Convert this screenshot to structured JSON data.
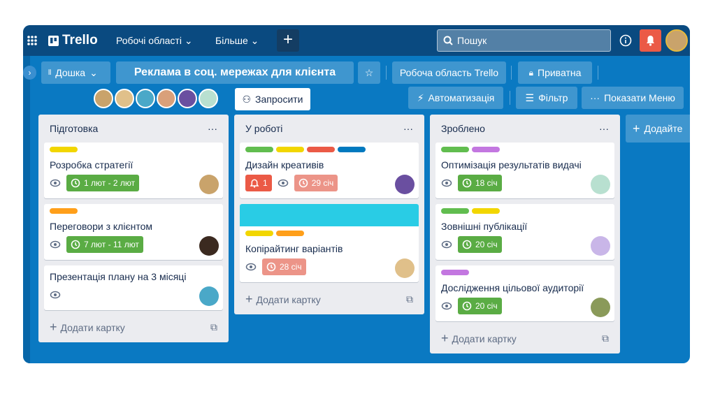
{
  "nav": {
    "logo": "Trello",
    "menus": [
      "Робочі області",
      "Більше"
    ],
    "search": "Пошук"
  },
  "board": {
    "view": "Дошка",
    "title": "Реклама в соц. мережах для клієнта",
    "workspace": "Робоча область Trello",
    "visibility": "Приватна",
    "invite": "Запросити",
    "automation": "Автоматизація",
    "filter": "Фільтр",
    "menu": "Показати Меню"
  },
  "lists": [
    {
      "title": "Підготовка",
      "add": "Додати картку",
      "cards": [
        {
          "labels": [
            "#f2d600"
          ],
          "title": "Розробка стратегії",
          "date": "1 лют - 2 лют",
          "date_color": "#5aac44",
          "avatar": "#c9a36b"
        },
        {
          "labels": [
            "#ff9f1a"
          ],
          "title": "Переговори з клієнтом",
          "date": "7 лют - 11 лют",
          "date_color": "#5aac44",
          "avatar": "#3b2a20"
        },
        {
          "labels": [],
          "title": "Презентація плану на 3 місяці",
          "avatar": "#4aa8c8"
        }
      ]
    },
    {
      "title": "У роботі",
      "add": "Додати картку",
      "cards": [
        {
          "labels": [
            "#61bd4f",
            "#f2d600",
            "#eb5a46",
            "#0079bf"
          ],
          "title": "Дизайн креативів",
          "notifications": "1",
          "date": "29 січ",
          "date_color": "#ec9488",
          "avatar": "#6a4fa0"
        },
        {
          "cover": "#29cce5",
          "labels": [
            "#f2d600",
            "#ff9f1a"
          ],
          "title": "Копірайтинг варіантів",
          "date": "28 січ",
          "date_color": "#ec9488",
          "avatar": "#e0c08a"
        }
      ]
    },
    {
      "title": "Зроблено",
      "add": "Додати картку",
      "cards": [
        {
          "labels": [
            "#61bd4f",
            "#c377e0"
          ],
          "title": "Оптимізація результатів видачі",
          "date": "18 січ",
          "date_color": "#5aac44",
          "avatar": "#b8e0d0"
        },
        {
          "labels": [
            "#61bd4f",
            "#f2d600"
          ],
          "title": "Зовнішні публікації",
          "date": "20 січ",
          "date_color": "#5aac44",
          "avatar": "#c9b6e8"
        },
        {
          "labels": [
            "#c377e0"
          ],
          "title": "Дослідження цільової аудиторії",
          "date": "20 січ",
          "date_color": "#5aac44",
          "avatar": "#8a9a5a"
        }
      ]
    }
  ],
  "add_list": "Додайте"
}
